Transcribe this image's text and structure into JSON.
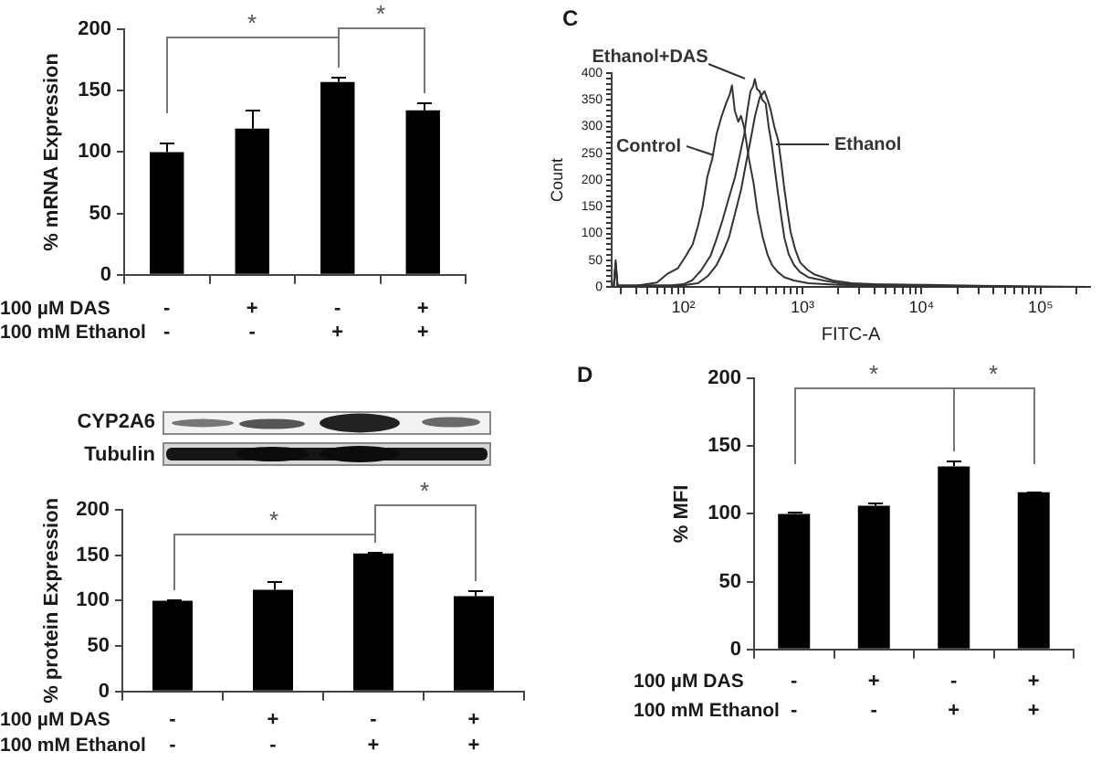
{
  "chart_data": [
    {
      "type": "bar",
      "ylabel": "% mRNA Expression",
      "xlabel": "100 µM DAS\n100 mM Ethanol",
      "categories": [
        "-\n-",
        "+\n-",
        "-\n+",
        "+\n+"
      ],
      "values": [
        100,
        119,
        157,
        134
      ],
      "errors": [
        7,
        15,
        4,
        6
      ],
      "color": "#000000",
      "ylim": [
        0,
        200
      ],
      "yticks": [
        0,
        50,
        100,
        150,
        200
      ],
      "annotations": [
        "*",
        "*"
      ]
    },
    {
      "type": "other",
      "annotations": [
        "CYP2A6",
        "Tubulin"
      ]
    },
    {
      "type": "bar",
      "ylabel": "% protein Expression",
      "xlabel": "100 µM DAS\n100 mM Ethanol",
      "categories": [
        "-\n-",
        "+\n-",
        "-\n+",
        "+\n+"
      ],
      "values": [
        100,
        112,
        152,
        105
      ],
      "errors": [
        1,
        10,
        2,
        6
      ],
      "color": "#000000",
      "ylim": [
        0,
        200
      ],
      "yticks": [
        0,
        50,
        100,
        150,
        200
      ],
      "annotations": [
        "*",
        "*"
      ]
    },
    {
      "type": "line",
      "title": "C",
      "xlabel": "FITC-A",
      "ylabel": "Count",
      "log": "x",
      "xlim": [
        25,
        260000
      ],
      "xticks": [
        {
          "value": 30,
          "label": null
        },
        {
          "value": 40,
          "label": null
        },
        {
          "value": 50,
          "label": null
        },
        {
          "value": 60,
          "label": null
        },
        {
          "value": 70,
          "label": null
        },
        {
          "value": 80,
          "label": null
        },
        {
          "value": 90,
          "label": null
        },
        {
          "value": 100,
          "label": "10²"
        },
        {
          "value": 200,
          "label": null
        },
        {
          "value": 300,
          "label": null
        },
        {
          "value": 400,
          "label": null
        },
        {
          "value": 500,
          "label": null
        },
        {
          "value": 600,
          "label": null
        },
        {
          "value": 700,
          "label": null
        },
        {
          "value": 800,
          "label": null
        },
        {
          "value": 900,
          "label": null
        },
        {
          "value": 1000,
          "label": "10³"
        },
        {
          "value": 2000,
          "label": null
        },
        {
          "value": 3000,
          "label": null
        },
        {
          "value": 4000,
          "label": null
        },
        {
          "value": 5000,
          "label": null
        },
        {
          "value": 6000,
          "label": null
        },
        {
          "value": 7000,
          "label": null
        },
        {
          "value": 8000,
          "label": null
        },
        {
          "value": 9000,
          "label": null
        },
        {
          "value": 10000,
          "label": "10⁴"
        },
        {
          "value": 20000,
          "label": null
        },
        {
          "value": 30000,
          "label": null
        },
        {
          "value": 40000,
          "label": null
        },
        {
          "value": 50000,
          "label": null
        },
        {
          "value": 60000,
          "label": null
        },
        {
          "value": 70000,
          "label": null
        },
        {
          "value": 80000,
          "label": null
        },
        {
          "value": 90000,
          "label": null
        },
        {
          "value": 100000,
          "label": "10⁵"
        },
        {
          "value": 200000,
          "label": null
        }
      ],
      "ylim": [
        0,
        400
      ],
      "yticks": [
        0,
        {
          "value": 10,
          "label": null
        },
        {
          "value": 20,
          "label": null
        },
        {
          "value": 30,
          "label": null
        },
        {
          "value": 40,
          "label": null
        },
        50,
        {
          "value": 60,
          "label": null
        },
        {
          "value": 70,
          "label": null
        },
        {
          "value": 80,
          "label": null
        },
        {
          "value": 90,
          "label": null
        },
        100,
        {
          "value": 110,
          "label": null
        },
        {
          "value": 120,
          "label": null
        },
        {
          "value": 130,
          "label": null
        },
        {
          "value": 140,
          "label": null
        },
        150,
        {
          "value": 160,
          "label": null
        },
        {
          "value": 170,
          "label": null
        },
        {
          "value": 180,
          "label": null
        },
        {
          "value": 190,
          "label": null
        },
        200,
        {
          "value": 210,
          "label": null
        },
        {
          "value": 220,
          "label": null
        },
        {
          "value": 230,
          "label": null
        },
        {
          "value": 240,
          "label": null
        },
        250,
        {
          "value": 260,
          "label": null
        },
        {
          "value": 270,
          "label": null
        },
        {
          "value": 280,
          "label": null
        },
        {
          "value": 290,
          "label": null
        },
        300,
        {
          "value": 310,
          "label": null
        },
        {
          "value": 320,
          "label": null
        },
        {
          "value": 330,
          "label": null
        },
        {
          "value": 340,
          "label": null
        },
        350,
        {
          "value": 360,
          "label": null
        },
        {
          "value": 370,
          "label": null
        },
        {
          "value": 380,
          "label": null
        },
        {
          "value": 390,
          "label": null
        },
        400
      ],
      "series": [
        {
          "name": "Control",
          "color": "#333333",
          "x": [
            26,
            27,
            28,
            40,
            60,
            73,
            90,
            105,
            120,
            133,
            145,
            159,
            175,
            190,
            210,
            228,
            245,
            256,
            270,
            289,
            305,
            325,
            355,
            388,
            420,
            465,
            510,
            555,
            620,
            705,
            850,
            1120,
            2000,
            5000,
            20000,
            100000,
            250000
          ],
          "values": [
            0,
            50,
            3,
            2,
            8,
            24,
            35,
            58,
            80,
            115,
            150,
            206,
            240,
            286,
            320,
            343,
            360,
            377,
            330,
            309,
            320,
            297,
            240,
            195,
            140,
            92,
            60,
            41,
            28,
            18,
            12,
            7,
            4,
            2,
            1,
            0,
            0
          ]
        },
        {
          "name": "Ethanol",
          "color": "#333333",
          "x": [
            26,
            27,
            28,
            100,
            133,
            160,
            190,
            215,
            241,
            270,
            306,
            335,
            366,
            400,
            437,
            480,
            510,
            541,
            580,
            626,
            665,
            705,
            750,
            795,
            870,
            955,
            1100,
            1270,
            1800,
            2600,
            4000,
            10000,
            30000,
            100000,
            250000
          ],
          "values": [
            0,
            40,
            2,
            3,
            7,
            20,
            41,
            65,
            92,
            135,
            183,
            230,
            274,
            320,
            354,
            366,
            350,
            331,
            300,
            274,
            230,
            183,
            140,
            103,
            70,
            46,
            32,
            23,
            12,
            7,
            5,
            4,
            2,
            1,
            0
          ]
        },
        {
          "name": "Ethanol+DAS",
          "color": "#333333",
          "x": [
            26,
            27,
            28,
            80,
            100,
            118,
            140,
            169,
            190,
            214,
            240,
            272,
            300,
            325,
            345,
            366,
            385,
            398,
            415,
            437,
            460,
            492,
            520,
            555,
            590,
            626,
            665,
            705,
            770,
            849,
            950,
            1120,
            1500,
            2040,
            3000,
            6000,
            20000,
            100000,
            250000
          ],
          "values": [
            0,
            45,
            2,
            3,
            5,
            12,
            30,
            58,
            90,
            126,
            165,
            206,
            250,
            286,
            330,
            366,
            375,
            389,
            370,
            366,
            350,
            343,
            300,
            263,
            215,
            172,
            130,
            92,
            60,
            41,
            28,
            18,
            12,
            7,
            5,
            3,
            1,
            0,
            0
          ]
        }
      ]
    },
    {
      "type": "bar",
      "title": "D",
      "ylabel": "% MFI",
      "xlabel": "100 µM DAS\n100 mM Ethanol",
      "categories": [
        "-\n-",
        "+\n-",
        "-\n+",
        "+\n+"
      ],
      "values": [
        100,
        106,
        135,
        116
      ],
      "errors": [
        1,
        3,
        4,
        1
      ],
      "color": "#000000",
      "ylim": [
        0,
        200
      ],
      "yticks": [
        0,
        50,
        100,
        150,
        200
      ],
      "annotations": [
        "*",
        "*"
      ]
    }
  ]
}
